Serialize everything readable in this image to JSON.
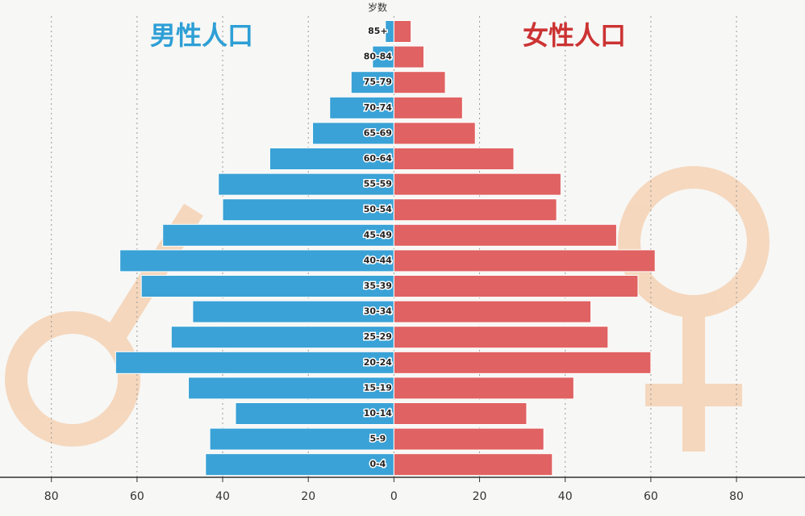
{
  "chart_data": {
    "type": "pyramid",
    "y_label": "岁数",
    "categories": [
      "85+",
      "80-84",
      "75-79",
      "70-74",
      "65-69",
      "60-64",
      "55-59",
      "50-54",
      "45-49",
      "40-44",
      "35-39",
      "30-34",
      "25-29",
      "20-24",
      "15-19",
      "10-14",
      "5-9",
      "0-4"
    ],
    "series": [
      {
        "name": "男性人口",
        "color": "#3aa2d6",
        "side": "left",
        "values": [
          2,
          5,
          10,
          15,
          19,
          29,
          41,
          40,
          54,
          64,
          59,
          47,
          52,
          65,
          48,
          37,
          43,
          44
        ]
      },
      {
        "name": "女性人口",
        "color": "#e06262",
        "side": "right",
        "values": [
          4,
          7,
          12,
          16,
          19,
          28,
          39,
          38,
          52,
          61,
          57,
          46,
          50,
          60,
          42,
          31,
          35,
          37
        ]
      }
    ],
    "legend_colors": [
      "#2e9fd6",
      "#cc3333"
    ],
    "xlim": [
      -92,
      96
    ],
    "xticks": [
      {
        "value": -80,
        "label": "80"
      },
      {
        "value": -60,
        "label": "60"
      },
      {
        "value": -40,
        "label": "40"
      },
      {
        "value": -20,
        "label": "20"
      },
      0,
      20,
      40,
      60,
      80
    ],
    "grid": true
  }
}
